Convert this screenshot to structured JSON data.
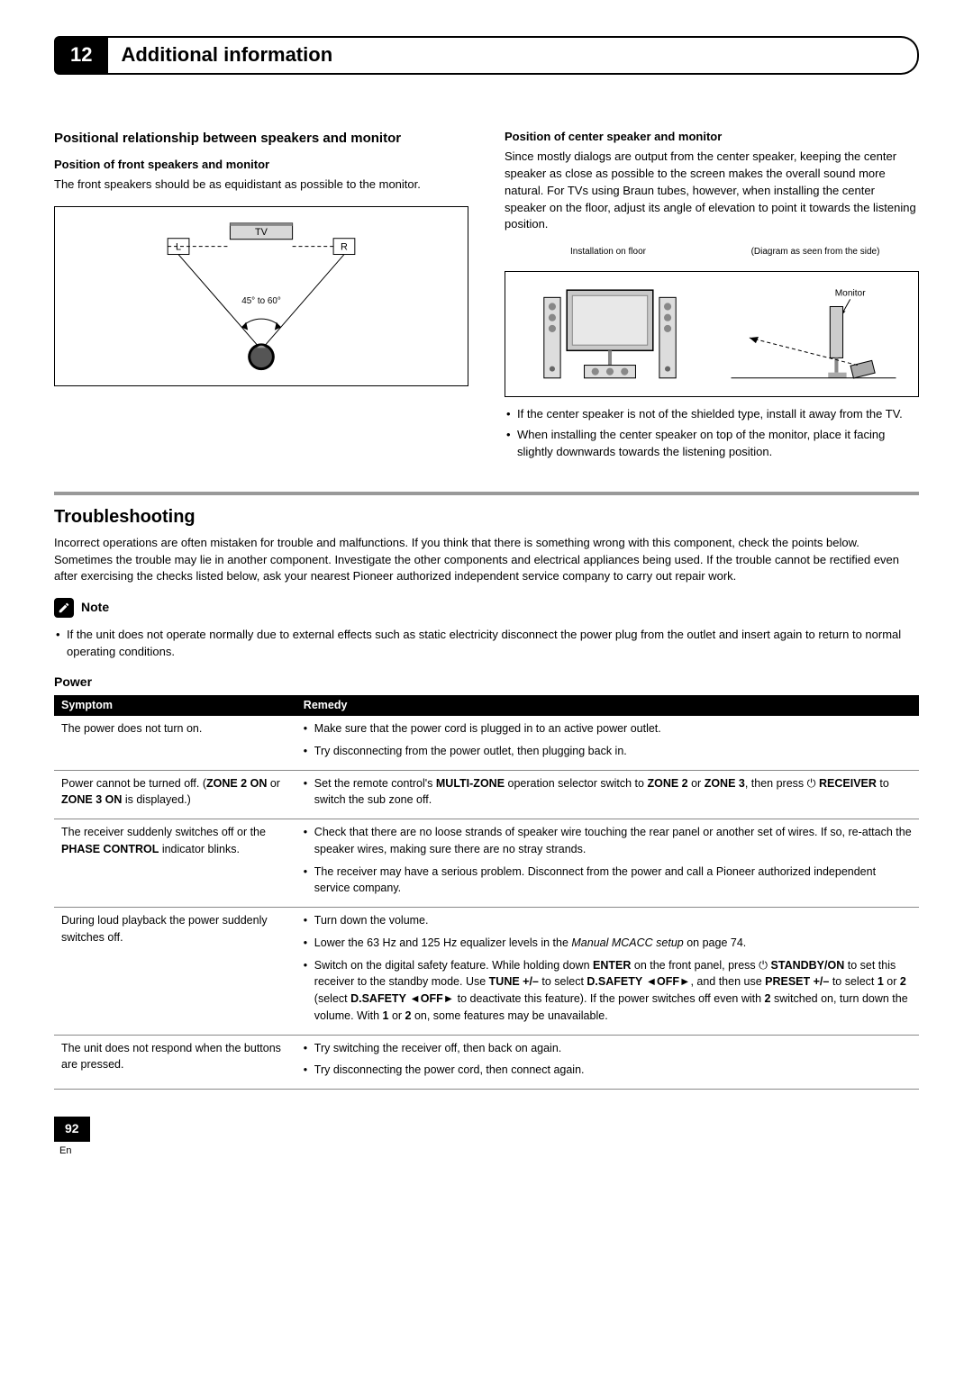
{
  "chapter": {
    "number": "12",
    "title": "Additional information"
  },
  "left": {
    "heading": "Positional relationship between speakers and monitor",
    "sub": "Position of front speakers and monitor",
    "body": "The front speakers should be as equidistant as possible to the monitor.",
    "diagram": {
      "labels": {
        "L": "L",
        "TV": "TV",
        "R": "R",
        "angle": "45° to 60°"
      },
      "stroke": "#000000"
    }
  },
  "right": {
    "sub": "Position of center speaker and monitor",
    "body": "Since mostly dialogs are output from the center speaker, keeping the center speaker as close as possible to the screen makes the overall sound more natural. For TVs using Braun tubes, however, when installing the center speaker on the floor, adjust its angle of elevation to point it towards the listening position.",
    "captions": {
      "left": "Installation on floor",
      "right": "(Diagram as seen from the side)"
    },
    "monitor_label": "Monitor",
    "bullets": [
      "If the center speaker is not of the shielded type, install it away from the TV.",
      "When installing the center speaker on top of the monitor, place it facing slightly downwards towards the listening position."
    ]
  },
  "troubleshooting": {
    "heading": "Troubleshooting",
    "intro": "Incorrect operations are often mistaken for trouble and malfunctions. If you think that there is something wrong with this component, check the points below. Sometimes the trouble may lie in another component. Investigate the other components and electrical appliances being used. If the trouble cannot be rectified even after exercising the checks listed below, ask your nearest Pioneer authorized independent service company to carry out repair work.",
    "note_label": "Note",
    "note_text": "If the unit does not operate normally due to external effects such as static electricity disconnect the power plug from the outlet and insert again to return to normal operating conditions."
  },
  "power": {
    "heading": "Power",
    "columns": {
      "symptom": "Symptom",
      "remedy": "Remedy"
    },
    "rows": [
      {
        "symptom_html": "The power does not turn on.",
        "remedies": [
          "Make sure that the power cord is plugged in to an active power outlet.",
          "Try disconnecting from the power outlet, then plugging back in."
        ]
      },
      {
        "symptom_html": "Power cannot be turned off. (<b>ZONE 2 ON</b> or <b>ZONE 3 ON</b> is displayed.)",
        "remedies": [
          "Set the remote control's <b>MULTI-ZONE</b> operation selector switch to <b>ZONE 2</b> or <b>ZONE 3</b>, then press <span class='pwr'>&#x23FB;</span> <b>RECEIVER</b> to switch the sub zone off."
        ]
      },
      {
        "symptom_html": "The receiver suddenly switches off or the <b>PHASE CONTROL</b> indicator blinks.",
        "remedies": [
          "Check that there are no loose strands of speaker wire touching the rear panel or another set of wires. If so, re-attach the speaker wires, making sure there are no stray strands.",
          "The receiver may have a serious problem. Disconnect from the power and call a Pioneer authorized independent service company."
        ]
      },
      {
        "symptom_html": "During loud playback the power suddenly switches off.",
        "remedies": [
          "Turn down the volume.",
          "Lower the 63 Hz and 125 Hz equalizer levels in the <i>Manual MCACC setup</i> on page 74.",
          "Switch on the digital safety feature. While holding down <b>ENTER</b> on the front panel, press <span class='pwr'>&#x23FB;</span> <b>STANDBY/ON</b> to set this receiver to the standby mode. Use <b>TUNE +/–</b> to select <b>D.SAFETY</b> <b>◄OFF►</b>, and then use <b>PRESET +/–</b> to select <b>1</b> or <b>2</b> (select <b>D.SAFETY</b> <b>◄OFF►</b> to deactivate this feature). If the power switches off even with <b>2</b> switched on, turn down the volume. With <b>1</b> or <b>2</b> on, some features may be unavailable."
        ]
      },
      {
        "symptom_html": "The unit does not respond when the buttons are pressed.",
        "remedies": [
          "Try switching the receiver off, then back on again.",
          "Try disconnecting the power cord, then connect again."
        ]
      }
    ]
  },
  "footer": {
    "page": "92",
    "lang": "En"
  }
}
